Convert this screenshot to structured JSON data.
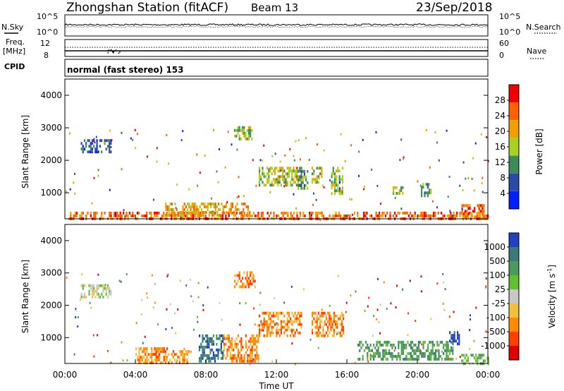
{
  "header": {
    "station": "Zhongshan Station (fitACF)",
    "beam": "Beam 13",
    "date": "23/Sep/2018"
  },
  "top_panels": {
    "nsky_label": "N.Sky",
    "nsky_tick_hi": "10^5",
    "nsky_tick_lo": "10^0",
    "nsearch_label": "N.Search",
    "nsearch_tick_hi": "10^5",
    "nsearch_tick_lo": "10^0",
    "freq_label": "Freq.",
    "freq_unit": "[MHz]",
    "freq_tick_hi": "12",
    "freq_tick_lo": "8",
    "nave_label": "Nave",
    "nave_tick_hi": "60",
    "nave_tick_lo": "0",
    "cpid_label": "CPID",
    "cpid_text": "normal (fast stereo) 153"
  },
  "chart_data": [
    {
      "type": "heatmap",
      "name": "power",
      "ylabel": "Slant Range [km]",
      "xlabel": "",
      "y_ticks": [
        "1000",
        "2000",
        "3000",
        "4000"
      ],
      "ylim": [
        200,
        4500
      ],
      "xlim_hours": [
        0,
        24
      ],
      "colorbar": {
        "label": "Power [dB]",
        "ticks": [
          "4",
          "8",
          "12",
          "16",
          "20",
          "24",
          "28"
        ],
        "colors": [
          "#0020ff",
          "#2a4aa6",
          "#3c8c5a",
          "#a8d020",
          "#f0a000",
          "#ff6000",
          "#f00000"
        ]
      },
      "echo_regions": [
        {
          "t0": 0.9,
          "t1": 2.6,
          "r0": 2300,
          "r1": 2650,
          "level": 1
        },
        {
          "t0": 0.2,
          "t1": 24.0,
          "r0": 200,
          "r1": 420,
          "level": 5
        },
        {
          "t0": 5.6,
          "t1": 10.5,
          "r0": 320,
          "r1": 700,
          "level": 4
        },
        {
          "t0": 9.6,
          "t1": 10.6,
          "r0": 2700,
          "r1": 3050,
          "level": 3
        },
        {
          "t0": 11.0,
          "t1": 13.4,
          "r0": 1200,
          "r1": 1800,
          "level": 3
        },
        {
          "t0": 14.0,
          "t1": 14.6,
          "r0": 1300,
          "r1": 1800,
          "level": 3
        },
        {
          "t0": 15.1,
          "t1": 15.8,
          "r0": 1000,
          "r1": 1800,
          "level": 3
        },
        {
          "t0": 13.2,
          "t1": 13.8,
          "r0": 1100,
          "r1": 1700,
          "level": 2
        },
        {
          "t0": 18.6,
          "t1": 19.2,
          "r0": 1000,
          "r1": 1200,
          "level": 3
        },
        {
          "t0": 20.2,
          "t1": 20.8,
          "r0": 900,
          "r1": 1300,
          "level": 2
        },
        {
          "t0": 22.5,
          "t1": 23.8,
          "r0": 250,
          "r1": 650,
          "level": 5
        }
      ]
    },
    {
      "type": "heatmap",
      "name": "velocity",
      "ylabel": "Slant Range [km]",
      "xlabel": "Time UT",
      "y_ticks": [
        "1000",
        "2000",
        "3000",
        "4000"
      ],
      "ylim": [
        200,
        4500
      ],
      "xlim_hours": [
        0,
        24
      ],
      "x_ticks": [
        "00:00",
        "04:00",
        "08:00",
        "12:00",
        "16:00",
        "20:00",
        "00:00"
      ],
      "colorbar": {
        "label": "Velocity [m s",
        "label_sup": "-1",
        "label_end": "]",
        "ticks": [
          "1000",
          "500",
          "100",
          "25",
          "-25",
          "-100",
          "-500",
          "-1000"
        ],
        "colors": [
          "#2040c0",
          "#3c7a78",
          "#4a9a5a",
          "#60c030",
          "#c8c8c8",
          "#f0c040",
          "#ff8c00",
          "#ff4000",
          "#e00000"
        ]
      },
      "echo_regions": [
        {
          "t0": 0.9,
          "t1": 2.6,
          "r0": 2300,
          "r1": 2650,
          "level": 4
        },
        {
          "t0": 4.0,
          "t1": 7.0,
          "r0": 200,
          "r1": 700,
          "level": 6
        },
        {
          "t0": 7.6,
          "t1": 9.0,
          "r0": 300,
          "r1": 1100,
          "level": 1
        },
        {
          "t0": 9.0,
          "t1": 11.0,
          "r0": 300,
          "r1": 1100,
          "level": 6
        },
        {
          "t0": 9.6,
          "t1": 10.8,
          "r0": 2600,
          "r1": 3050,
          "level": 6
        },
        {
          "t0": 11.0,
          "t1": 13.4,
          "r0": 1100,
          "r1": 1800,
          "level": 6
        },
        {
          "t0": 14.0,
          "t1": 15.8,
          "r0": 1100,
          "r1": 1800,
          "level": 6
        },
        {
          "t0": 16.6,
          "t1": 22.0,
          "r0": 300,
          "r1": 900,
          "level": 2
        },
        {
          "t0": 21.8,
          "t1": 22.4,
          "r0": 800,
          "r1": 1200,
          "level": 0
        },
        {
          "t0": 22.4,
          "t1": 24.0,
          "r0": 200,
          "r1": 500,
          "level": 3
        }
      ]
    }
  ]
}
